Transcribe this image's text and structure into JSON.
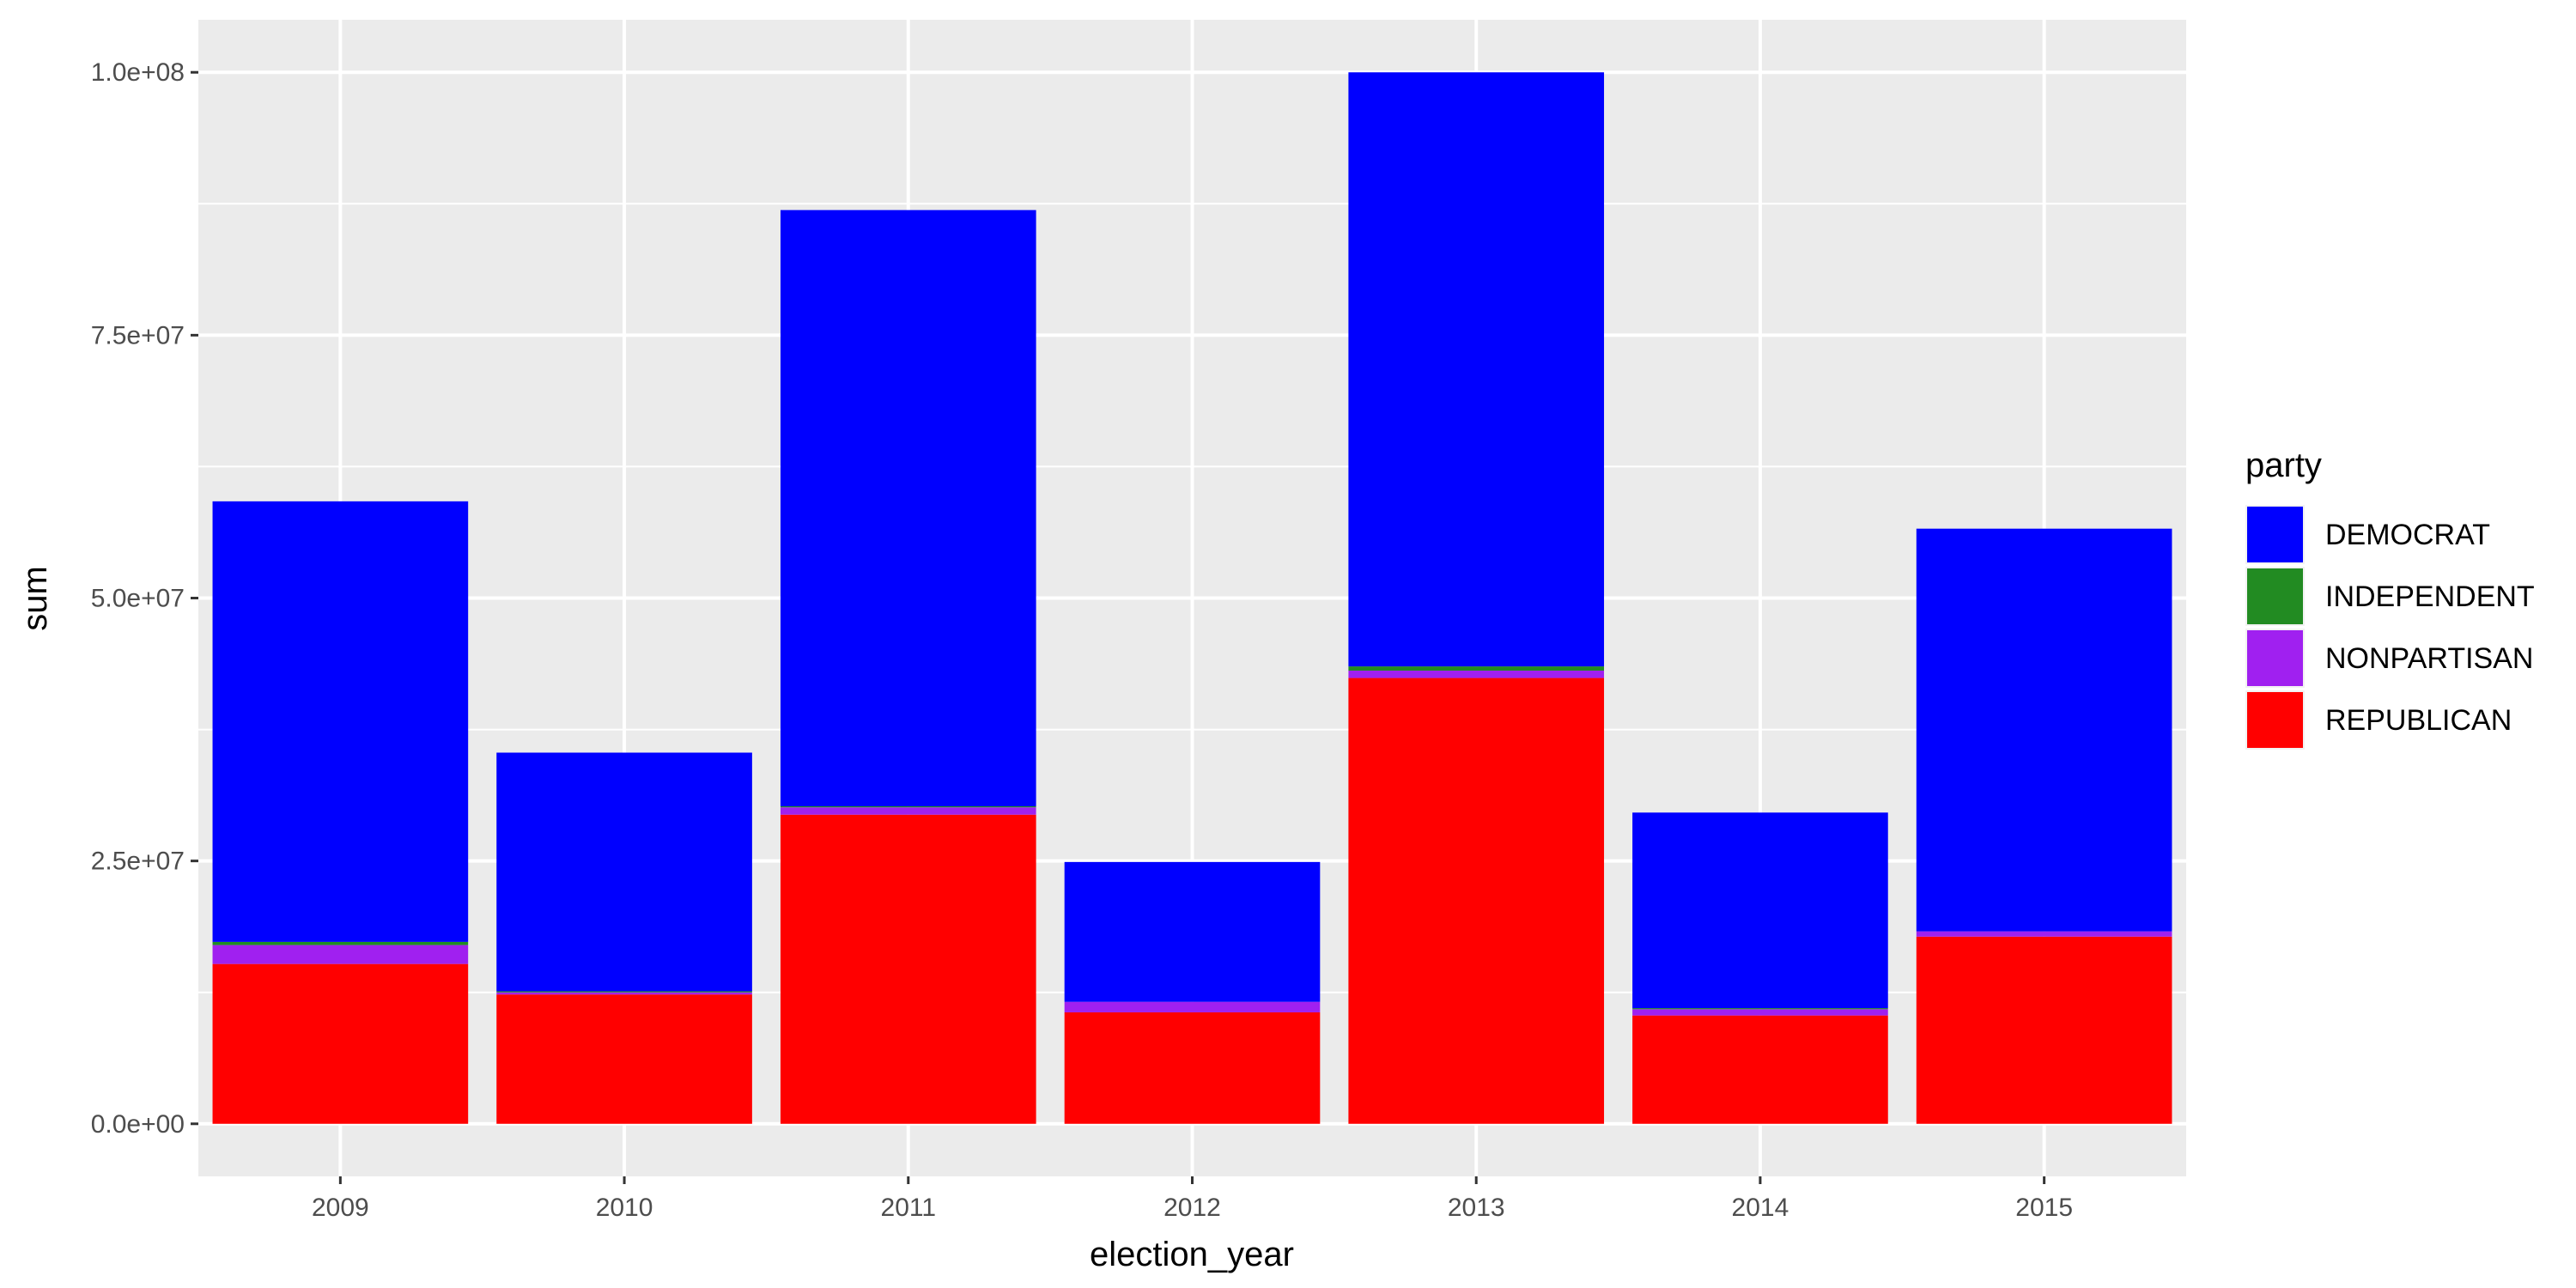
{
  "chart_data": {
    "type": "bar",
    "stacked": true,
    "xlabel": "election_year",
    "ylabel": "sum",
    "ylim": [
      -5000000,
      105000000
    ],
    "yticks": [
      0,
      25000000,
      50000000,
      75000000,
      100000000
    ],
    "ytick_labels": [
      "0.0e+00",
      "2.5e+07",
      "5.0e+07",
      "7.5e+07",
      "1.0e+08"
    ],
    "grid": true,
    "legend": {
      "title": "party",
      "position": "right",
      "entries": [
        "DEMOCRAT",
        "INDEPENDENT",
        "NONPARTISAN",
        "REPUBLICAN"
      ]
    },
    "categories": [
      "2009",
      "2010",
      "2011",
      "2012",
      "2013",
      "2014",
      "2015"
    ],
    "series": [
      {
        "name": "REPUBLICAN",
        "color": "#ff0000",
        "values": [
          15200000,
          12300000,
          29400000,
          10600000,
          42400000,
          10300000,
          17800000
        ]
      },
      {
        "name": "NONPARTISAN",
        "color": "#a020f0",
        "values": [
          1800000,
          200000,
          700000,
          1000000,
          700000,
          600000,
          500000
        ]
      },
      {
        "name": "INDEPENDENT",
        "color": "#228b22",
        "values": [
          300000,
          100000,
          100000,
          0,
          400000,
          100000,
          0
        ]
      },
      {
        "name": "DEMOCRAT",
        "color": "#0000ff",
        "values": [
          41900000,
          22700000,
          56700000,
          13300000,
          56500000,
          18600000,
          38300000
        ]
      }
    ]
  }
}
